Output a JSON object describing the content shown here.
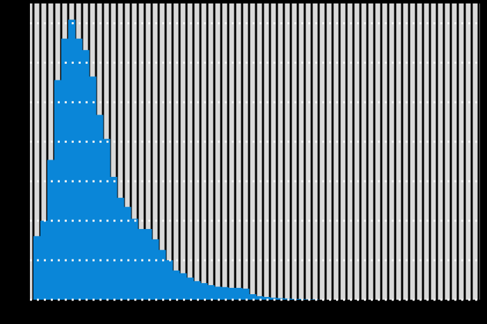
{
  "chart_data": {
    "type": "histogram",
    "bins": [
      0,
      1,
      2,
      3,
      4,
      5,
      6,
      7,
      8,
      9,
      10,
      11,
      12,
      13,
      14,
      15,
      16,
      17,
      18,
      19,
      20,
      21,
      22,
      23,
      24,
      25,
      26,
      27,
      28,
      29,
      30,
      31,
      32,
      33,
      34,
      35,
      36,
      37,
      38,
      39,
      40,
      41
    ],
    "values": [
      1.61,
      2.0,
      3.54,
      5.56,
      6.61,
      7.09,
      6.61,
      6.32,
      5.65,
      4.68,
      4.07,
      3.11,
      2.58,
      2.35,
      2.05,
      1.79,
      1.79,
      1.53,
      1.26,
      1.0,
      0.74,
      0.67,
      0.56,
      0.47,
      0.42,
      0.37,
      0.33,
      0.32,
      0.3,
      0.3,
      0.28,
      0.14,
      0.09,
      0.07,
      0.05,
      0.04,
      0.03,
      0.02,
      0.02,
      0.01,
      0.01
    ],
    "color": "#0a86d8",
    "xlim": [
      -0.5,
      64.2
    ],
    "ylim": [
      0,
      7.5
    ],
    "xticks": [
      0,
      1,
      2,
      3,
      4,
      5,
      6,
      7,
      8,
      9,
      10,
      11,
      12,
      13,
      14,
      15,
      16,
      17,
      18,
      19,
      20,
      21,
      22,
      23,
      24,
      25,
      26,
      27,
      28,
      29,
      30,
      31,
      32,
      33,
      34,
      35,
      36,
      37,
      38,
      39,
      40,
      41,
      42,
      43,
      44,
      45,
      46,
      47,
      48,
      49,
      50,
      51,
      52,
      53,
      54,
      55,
      56,
      57,
      58,
      59,
      60,
      61,
      62,
      63,
      64
    ],
    "yticks": [
      0,
      1,
      2,
      3,
      4,
      5,
      6,
      7
    ],
    "grid": true
  }
}
